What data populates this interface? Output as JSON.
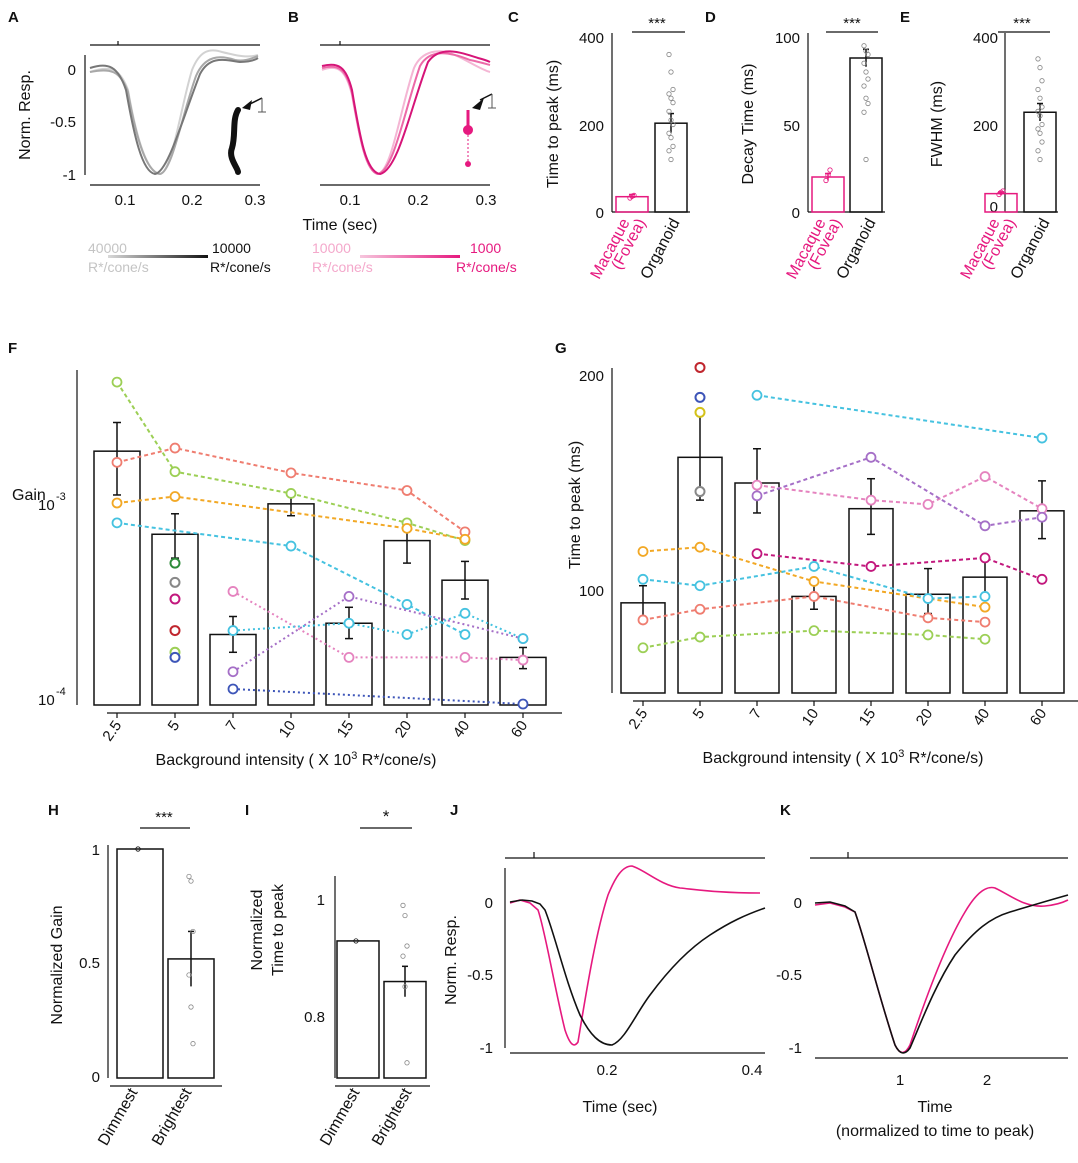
{
  "panels": [
    {
      "id": "A"
    },
    {
      "id": "B"
    },
    {
      "id": "C"
    },
    {
      "id": "D"
    },
    {
      "id": "E"
    },
    {
      "id": "F"
    },
    {
      "id": "G"
    },
    {
      "id": "H"
    },
    {
      "id": "I"
    },
    {
      "id": "J"
    },
    {
      "id": "K"
    }
  ],
  "colors": {
    "magenta": "#e6197f",
    "dark": "#111111",
    "gray": "#8a8a8a"
  },
  "labels": {
    "norm_resp": "Norm. Resp.",
    "time_sec": "Time (sec)",
    "scale_A_left": "40000",
    "scale_A_left_unit": "R*/cone/s",
    "scale_A_right": "10000",
    "scale_A_right_unit": "R*/cone/s",
    "scale_B_left": "10000",
    "scale_B_left_unit": "R*/cone/s",
    "scale_B_right": "1000",
    "scale_B_right_unit": "R*/cone/s",
    "sig3": "***",
    "sig1": "*",
    "macaque": "Macaque",
    "fovea": "(Fovea)",
    "organoid": "Organoid",
    "c_ylabel": "Time to peak (ms)",
    "d_ylabel": "Decay Time (ms)",
    "e_ylabel": "FWHM (ms)",
    "f_ylabel": "Gain",
    "f_xlabel_pre": "Background intensity ( X 10",
    "f_xlabel_sup": "3",
    "f_xlabel_post": " R*/cone/s)",
    "g_ylabel": "Time to peak (ms)",
    "h_ylabel": "Normalized Gain",
    "i_ylabel_1": "Normalized",
    "i_ylabel_2": "Time to peak",
    "dimmest": "Dimmest",
    "brightest": "Brightest",
    "k_xlabel_1": "Time",
    "k_xlabel_2": "(normalized to time to peak)"
  },
  "ticks": {
    "a_y": [
      "0",
      "-0.5",
      "-1"
    ],
    "a_x": [
      "0.1",
      "0.2",
      "0.3"
    ],
    "c_y": [
      "400",
      "200",
      "0"
    ],
    "d_y": [
      "100",
      "50",
      "0"
    ],
    "e_y": [
      "400",
      "200",
      "0"
    ],
    "f_y": [
      "10",
      "-3",
      "10",
      "-4"
    ],
    "g_y": [
      "200",
      "100"
    ],
    "h_y": [
      "1",
      "0.5",
      "0"
    ],
    "i_y": [
      "1",
      "0.8"
    ],
    "j_y": [
      "0",
      "-0.5",
      "-1"
    ],
    "j_x": [
      "0.2",
      "0.4"
    ],
    "k_y": [
      "0",
      "-0.5",
      "-1"
    ],
    "k_x": [
      "1",
      "2"
    ]
  },
  "chart_data": [
    {
      "panel": "C",
      "type": "bar",
      "categories": [
        "Macaque (Fovea)",
        "Organoid"
      ],
      "values": [
        35,
        203
      ],
      "errors": [
        5,
        22
      ],
      "ylim": [
        0,
        400
      ],
      "ylabel": "Time to peak (ms)",
      "significance": "***"
    },
    {
      "panel": "D",
      "type": "bar",
      "categories": [
        "Macaque (Fovea)",
        "Organoid"
      ],
      "values": [
        20,
        88
      ],
      "errors": [
        2,
        5
      ],
      "ylim": [
        0,
        100
      ],
      "ylabel": "Decay Time (ms)",
      "significance": "***"
    },
    {
      "panel": "E",
      "type": "bar",
      "categories": [
        "Macaque (Fovea)",
        "Organoid"
      ],
      "values": [
        42,
        228
      ],
      "errors": [
        4,
        20
      ],
      "ylim": [
        0,
        400
      ],
      "ylabel": "FWHM (ms)",
      "significance": "***"
    },
    {
      "panel": "F",
      "type": "bar",
      "log_scale": true,
      "categories": [
        "2.5",
        "5",
        "7",
        "10",
        "15",
        "20",
        "40",
        "60"
      ],
      "values": [
        0.00185,
        0.00069,
        0.00021,
        0.00099,
        0.00024,
        0.00064,
        0.0004,
        0.00016
      ],
      "err_low": [
        0.0011,
        0.00052,
        0.00017,
        0.00086,
        0.0002,
        0.00049,
        0.00032,
        0.00014
      ],
      "err_high": [
        0.0026,
        0.00088,
        0.00026,
        0.00109,
        0.00029,
        0.00078,
        0.0005,
        0.00018
      ],
      "ylabel": "Gain",
      "xlabel": "Background intensity ( X 10^3 R*/cone/s)"
    },
    {
      "panel": "G",
      "type": "bar",
      "categories": [
        "2.5",
        "5",
        "7",
        "10",
        "15",
        "20",
        "40",
        "60"
      ],
      "values": [
        94,
        162,
        150,
        97,
        138,
        98,
        106,
        137
      ],
      "err_low": [
        86,
        142,
        136,
        91,
        126,
        89,
        98,
        124
      ],
      "err_high": [
        102,
        182,
        166,
        103,
        152,
        110,
        116,
        151
      ],
      "ylim": [
        55,
        208
      ],
      "ylabel": "Time to peak (ms)",
      "xlabel": "Background intensity ( X 10^3 R*/cone/s)"
    },
    {
      "panel": "H",
      "type": "bar",
      "categories": [
        "Dimmest",
        "Brightest"
      ],
      "values": [
        1.0,
        0.52
      ],
      "errors": [
        0,
        0.12
      ],
      "ylim": [
        0,
        1
      ],
      "ylabel": "Normalized Gain",
      "significance": "***"
    },
    {
      "panel": "I",
      "type": "bar",
      "categories": [
        "Dimmest",
        "Brightest"
      ],
      "values": [
        1.0,
        0.92
      ],
      "errors": [
        0,
        0.03
      ],
      "ylim": [
        0.73,
        1.12
      ],
      "ylabel": "Normalized Time to peak",
      "significance": "*"
    },
    {
      "panel": "J",
      "type": "line",
      "xlabel": "Time (sec)",
      "ylabel": "Norm. Resp.",
      "xlim": [
        0.05,
        0.4
      ],
      "ylim": [
        -1,
        0.2
      ]
    },
    {
      "panel": "K",
      "type": "line",
      "xlabel": "Time (normalized to time to peak)",
      "xlim": [
        0.1,
        2.8
      ],
      "ylim": [
        -1,
        0.2
      ]
    }
  ]
}
